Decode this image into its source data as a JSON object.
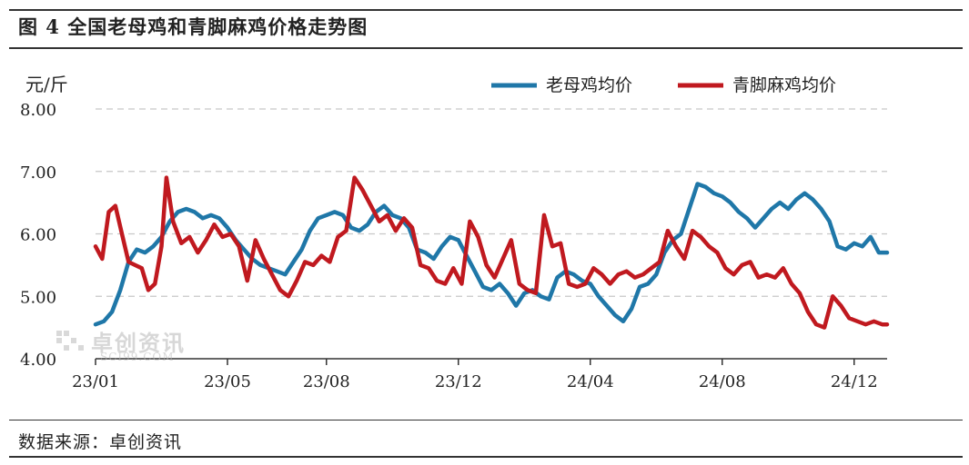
{
  "title": "图 4 全国老母鸡和青脚麻鸡价格走势图",
  "source": "数据来源：卓创资讯",
  "watermark": {
    "cn": "卓创资讯",
    "en": "SCI99.COM"
  },
  "chart_data": {
    "type": "line",
    "ylabel": "元/斤",
    "ylim": [
      4.0,
      8.0
    ],
    "yticks": [
      "8.00",
      "7.00",
      "6.00",
      "5.00",
      "4.00"
    ],
    "x_ticks": [
      "23/01",
      "23/05",
      "23/08",
      "23/12",
      "24/04",
      "24/08",
      "24/12"
    ],
    "grid": "horizontal-dashed",
    "legend": "top-right",
    "x_domain_months": [
      0,
      24
    ],
    "series": [
      {
        "name": "老母鸡均价",
        "color": "#1f77a8",
        "points": [
          [
            0.0,
            4.55
          ],
          [
            0.25,
            4.6
          ],
          [
            0.5,
            4.75
          ],
          [
            0.75,
            5.1
          ],
          [
            1.0,
            5.55
          ],
          [
            1.25,
            5.75
          ],
          [
            1.5,
            5.7
          ],
          [
            1.75,
            5.8
          ],
          [
            2.0,
            5.95
          ],
          [
            2.25,
            6.2
          ],
          [
            2.5,
            6.35
          ],
          [
            2.75,
            6.4
          ],
          [
            3.0,
            6.35
          ],
          [
            3.25,
            6.25
          ],
          [
            3.5,
            6.3
          ],
          [
            3.75,
            6.25
          ],
          [
            4.0,
            6.1
          ],
          [
            4.25,
            5.9
          ],
          [
            4.5,
            5.75
          ],
          [
            4.75,
            5.6
          ],
          [
            5.0,
            5.5
          ],
          [
            5.25,
            5.45
          ],
          [
            5.5,
            5.4
          ],
          [
            5.75,
            5.35
          ],
          [
            6.0,
            5.55
          ],
          [
            6.25,
            5.75
          ],
          [
            6.5,
            6.05
          ],
          [
            6.75,
            6.25
          ],
          [
            7.0,
            6.3
          ],
          [
            7.25,
            6.35
          ],
          [
            7.5,
            6.3
          ],
          [
            7.75,
            6.1
          ],
          [
            8.0,
            6.05
          ],
          [
            8.25,
            6.15
          ],
          [
            8.5,
            6.35
          ],
          [
            8.75,
            6.45
          ],
          [
            9.0,
            6.3
          ],
          [
            9.25,
            6.25
          ],
          [
            9.5,
            6.1
          ],
          [
            9.75,
            5.75
          ],
          [
            10.0,
            5.7
          ],
          [
            10.25,
            5.6
          ],
          [
            10.5,
            5.8
          ],
          [
            10.75,
            5.95
          ],
          [
            11.0,
            5.9
          ],
          [
            11.25,
            5.65
          ],
          [
            11.5,
            5.4
          ],
          [
            11.75,
            5.15
          ],
          [
            12.0,
            5.1
          ],
          [
            12.25,
            5.2
          ],
          [
            12.5,
            5.05
          ],
          [
            12.75,
            4.85
          ],
          [
            13.0,
            5.05
          ],
          [
            13.25,
            5.1
          ],
          [
            13.5,
            5.0
          ],
          [
            13.75,
            4.95
          ],
          [
            14.0,
            5.3
          ],
          [
            14.25,
            5.4
          ],
          [
            14.5,
            5.35
          ],
          [
            14.75,
            5.25
          ],
          [
            15.0,
            5.2
          ],
          [
            15.25,
            5.0
          ],
          [
            15.5,
            4.85
          ],
          [
            15.75,
            4.7
          ],
          [
            16.0,
            4.6
          ],
          [
            16.25,
            4.8
          ],
          [
            16.5,
            5.15
          ],
          [
            16.75,
            5.2
          ],
          [
            17.0,
            5.35
          ],
          [
            17.25,
            5.7
          ],
          [
            17.5,
            5.9
          ],
          [
            17.75,
            6.0
          ],
          [
            18.0,
            6.4
          ],
          [
            18.25,
            6.8
          ],
          [
            18.5,
            6.75
          ],
          [
            18.75,
            6.65
          ],
          [
            19.0,
            6.6
          ],
          [
            19.25,
            6.5
          ],
          [
            19.5,
            6.35
          ],
          [
            19.75,
            6.25
          ],
          [
            20.0,
            6.1
          ],
          [
            20.25,
            6.25
          ],
          [
            20.5,
            6.4
          ],
          [
            20.75,
            6.5
          ],
          [
            21.0,
            6.4
          ],
          [
            21.25,
            6.55
          ],
          [
            21.5,
            6.65
          ],
          [
            21.75,
            6.55
          ],
          [
            22.0,
            6.4
          ],
          [
            22.25,
            6.2
          ],
          [
            22.5,
            5.8
          ],
          [
            22.75,
            5.75
          ],
          [
            23.0,
            5.85
          ],
          [
            23.25,
            5.8
          ],
          [
            23.5,
            5.95
          ],
          [
            23.75,
            5.7
          ],
          [
            24.0,
            5.7
          ]
        ]
      },
      {
        "name": "青脚麻鸡均价",
        "color": "#c0191f",
        "points": [
          [
            0.0,
            5.8
          ],
          [
            0.2,
            5.6
          ],
          [
            0.4,
            6.35
          ],
          [
            0.6,
            6.45
          ],
          [
            0.8,
            6.0
          ],
          [
            1.0,
            5.55
          ],
          [
            1.2,
            5.5
          ],
          [
            1.4,
            5.45
          ],
          [
            1.6,
            5.1
          ],
          [
            1.8,
            5.2
          ],
          [
            2.0,
            5.8
          ],
          [
            2.15,
            6.9
          ],
          [
            2.35,
            6.2
          ],
          [
            2.6,
            5.85
          ],
          [
            2.85,
            5.95
          ],
          [
            3.1,
            5.7
          ],
          [
            3.35,
            5.9
          ],
          [
            3.6,
            6.15
          ],
          [
            3.85,
            5.95
          ],
          [
            4.1,
            6.0
          ],
          [
            4.35,
            5.8
          ],
          [
            4.6,
            5.25
          ],
          [
            4.85,
            5.9
          ],
          [
            5.1,
            5.6
          ],
          [
            5.35,
            5.35
          ],
          [
            5.6,
            5.1
          ],
          [
            5.85,
            5.0
          ],
          [
            6.1,
            5.25
          ],
          [
            6.35,
            5.55
          ],
          [
            6.6,
            5.5
          ],
          [
            6.85,
            5.65
          ],
          [
            7.1,
            5.55
          ],
          [
            7.35,
            5.95
          ],
          [
            7.6,
            6.05
          ],
          [
            7.85,
            6.9
          ],
          [
            8.1,
            6.7
          ],
          [
            8.35,
            6.45
          ],
          [
            8.6,
            6.2
          ],
          [
            8.85,
            6.3
          ],
          [
            9.1,
            6.05
          ],
          [
            9.35,
            6.25
          ],
          [
            9.6,
            6.1
          ],
          [
            9.85,
            5.5
          ],
          [
            10.1,
            5.45
          ],
          [
            10.35,
            5.25
          ],
          [
            10.6,
            5.2
          ],
          [
            10.85,
            5.45
          ],
          [
            11.1,
            5.2
          ],
          [
            11.35,
            6.2
          ],
          [
            11.6,
            5.95
          ],
          [
            11.85,
            5.5
          ],
          [
            12.1,
            5.3
          ],
          [
            12.35,
            5.6
          ],
          [
            12.6,
            5.9
          ],
          [
            12.85,
            5.2
          ],
          [
            13.1,
            5.1
          ],
          [
            13.35,
            5.05
          ],
          [
            13.6,
            6.3
          ],
          [
            13.85,
            5.8
          ],
          [
            14.1,
            5.85
          ],
          [
            14.35,
            5.2
          ],
          [
            14.6,
            5.15
          ],
          [
            14.85,
            5.2
          ],
          [
            15.1,
            5.45
          ],
          [
            15.35,
            5.35
          ],
          [
            15.6,
            5.2
          ],
          [
            15.85,
            5.35
          ],
          [
            16.1,
            5.4
          ],
          [
            16.35,
            5.3
          ],
          [
            16.6,
            5.35
          ],
          [
            16.85,
            5.45
          ],
          [
            17.1,
            5.55
          ],
          [
            17.35,
            6.05
          ],
          [
            17.6,
            5.8
          ],
          [
            17.85,
            5.6
          ],
          [
            18.1,
            6.05
          ],
          [
            18.35,
            5.95
          ],
          [
            18.6,
            5.8
          ],
          [
            18.85,
            5.7
          ],
          [
            19.1,
            5.45
          ],
          [
            19.35,
            5.35
          ],
          [
            19.6,
            5.5
          ],
          [
            19.85,
            5.55
          ],
          [
            20.1,
            5.3
          ],
          [
            20.35,
            5.35
          ],
          [
            20.6,
            5.3
          ],
          [
            20.85,
            5.45
          ],
          [
            21.1,
            5.2
          ],
          [
            21.35,
            5.05
          ],
          [
            21.6,
            4.75
          ],
          [
            21.85,
            4.55
          ],
          [
            22.1,
            4.5
          ],
          [
            22.35,
            5.0
          ],
          [
            22.6,
            4.85
          ],
          [
            22.85,
            4.65
          ],
          [
            23.1,
            4.6
          ],
          [
            23.35,
            4.55
          ],
          [
            23.6,
            4.6
          ],
          [
            23.85,
            4.55
          ],
          [
            24.0,
            4.55
          ]
        ]
      }
    ]
  }
}
